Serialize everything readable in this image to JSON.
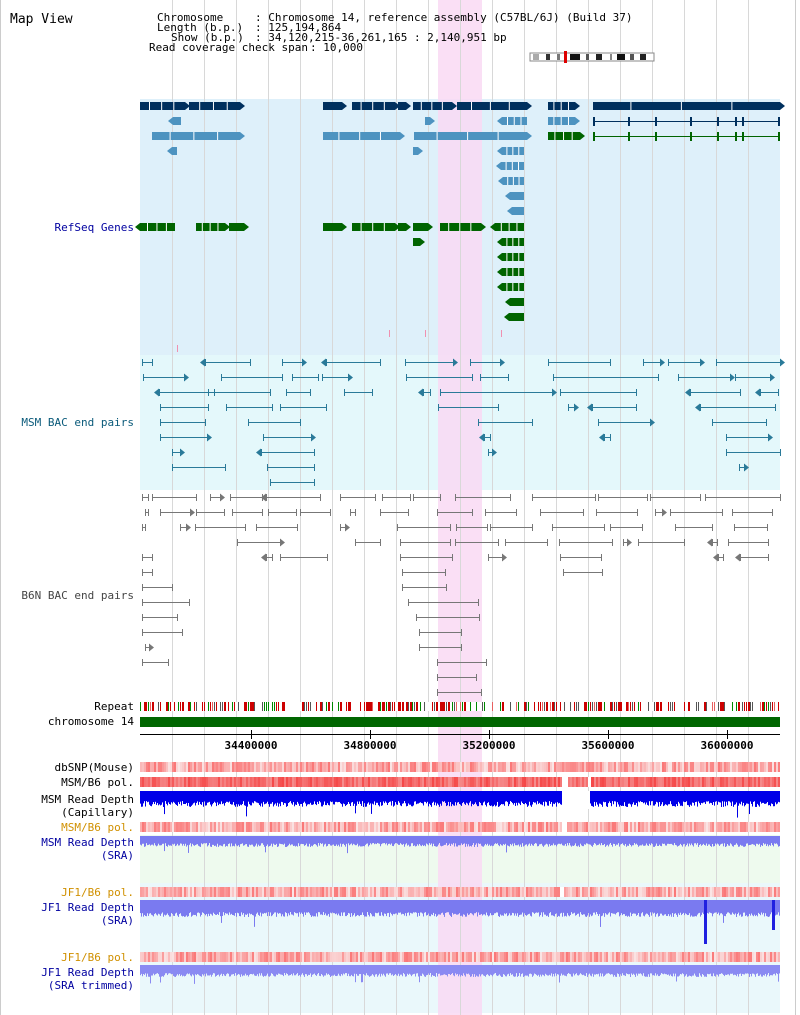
{
  "title": "Map View",
  "info": {
    "chromosome_key": "Chromosome",
    "chromosome_value": ": Chromosome 14, reference assembly (C57BL/6J) (Build 37)",
    "length_key": "Length (b.p.)",
    "length_value": ": 125,194,864",
    "show_key": "Show (b.p.)",
    "show_value": ": 34,120,215-36,261,165 : 2,140,951 bp",
    "coverage_key": "Read coverage check span",
    "coverage_value": ": 10,000"
  },
  "tracks": {
    "refseq": "RefSeq Genes",
    "msm_bac": "MSM BAC end pairs",
    "b6n_bac": "B6N BAC end pairs",
    "repeat": "Repeat",
    "chromosome": "chromosome 14",
    "dbsnp": "dbSNP(Mouse)",
    "msm_b6_pol_1": "MSM/B6 pol.",
    "msm_depth_cap_1": "MSM Read Depth",
    "msm_depth_cap_2": "(Capillary)",
    "msm_b6_pol_2": "MSM/B6 pol.",
    "msm_depth_sra_1": "MSM Read Depth",
    "msm_depth_sra_2": "(SRA)",
    "jf1_b6_pol_1": "JF1/B6 pol.",
    "jf1_depth_sra_1": "JF1 Read Depth",
    "jf1_depth_sra_2": "(SRA)",
    "jf1_b6_pol_2": "JF1/B6 pol.",
    "jf1_depth_trim_1": "JF1 Read Depth",
    "jf1_depth_trim_2": "(SRA trimmed)"
  },
  "axis": {
    "ticks": [
      "34400000",
      "34800000",
      "35200000",
      "35600000",
      "36000000"
    ]
  },
  "colors": {
    "refseq_bg": "#def0fa",
    "msm_bg": "#e4f8fb",
    "highlight": "#f9d9f3",
    "gene_dark": "#00305e",
    "gene_mid": "#4d93c0",
    "gene_green": "#006400",
    "msm_line": "#2a7a99",
    "b6n_line": "#777777",
    "chrom_green": "#006600",
    "depth_blue": "#0000e8",
    "depth_light": "#7a7af0",
    "label_blue": "#0000a0",
    "label_orange": "#d09000",
    "label_msm": "#0a5a7a"
  }
}
